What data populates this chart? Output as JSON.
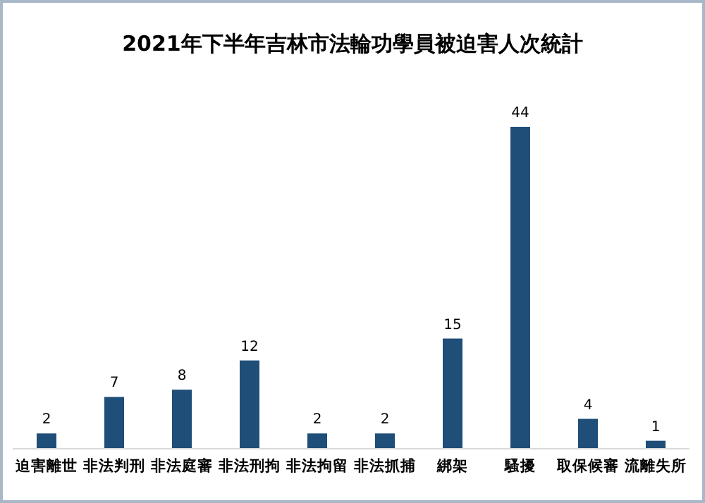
{
  "chart_data": {
    "type": "bar",
    "title": "2021年下半年吉林市法輪功學員被迫害人次統計",
    "categories": [
      "迫害離世",
      "非法判刑",
      "非法庭審",
      "非法刑拘",
      "非法拘留",
      "非法抓捕",
      "綁架",
      "騷擾",
      "取保候審",
      "流離失所"
    ],
    "values": [
      2,
      7,
      8,
      12,
      2,
      2,
      15,
      44,
      4,
      1
    ],
    "color": "#1f4e79",
    "data_labels": true
  }
}
